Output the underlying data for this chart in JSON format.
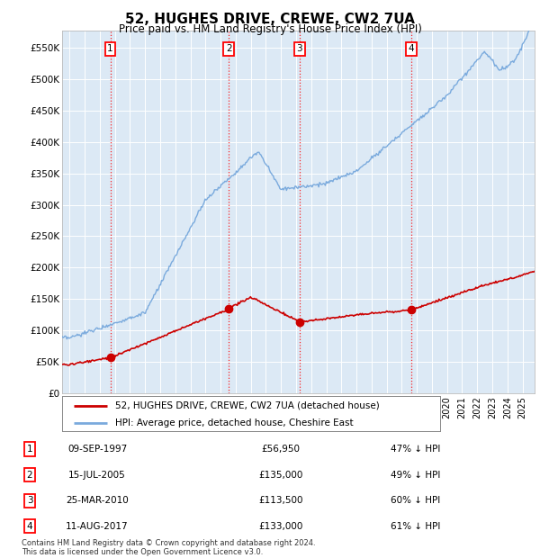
{
  "title": "52, HUGHES DRIVE, CREWE, CW2 7UA",
  "subtitle": "Price paid vs. HM Land Registry's House Price Index (HPI)",
  "plot_bg": "#dce9f5",
  "hpi_color": "#7aaadd",
  "price_color": "#cc0000",
  "ylim": [
    0,
    577000
  ],
  "yticks": [
    0,
    50000,
    100000,
    150000,
    200000,
    250000,
    300000,
    350000,
    400000,
    450000,
    500000,
    550000
  ],
  "ytick_labels": [
    "£0",
    "£50K",
    "£100K",
    "£150K",
    "£200K",
    "£250K",
    "£300K",
    "£350K",
    "£400K",
    "£450K",
    "£500K",
    "£550K"
  ],
  "sales": [
    {
      "date_num": 1997.69,
      "price": 56950,
      "label": "1"
    },
    {
      "date_num": 2005.54,
      "price": 135000,
      "label": "2"
    },
    {
      "date_num": 2010.23,
      "price": 113500,
      "label": "3"
    },
    {
      "date_num": 2017.61,
      "price": 133000,
      "label": "4"
    }
  ],
  "legend_entries": [
    "52, HUGHES DRIVE, CREWE, CW2 7UA (detached house)",
    "HPI: Average price, detached house, Cheshire East"
  ],
  "table_rows": [
    [
      "1",
      "09-SEP-1997",
      "£56,950",
      "47% ↓ HPI"
    ],
    [
      "2",
      "15-JUL-2005",
      "£135,000",
      "49% ↓ HPI"
    ],
    [
      "3",
      "25-MAR-2010",
      "£113,500",
      "60% ↓ HPI"
    ],
    [
      "4",
      "11-AUG-2017",
      "£133,000",
      "61% ↓ HPI"
    ]
  ],
  "footnote": "Contains HM Land Registry data © Crown copyright and database right 2024.\nThis data is licensed under the Open Government Licence v3.0.",
  "xlim_start": 1994.5,
  "xlim_end": 2025.8
}
